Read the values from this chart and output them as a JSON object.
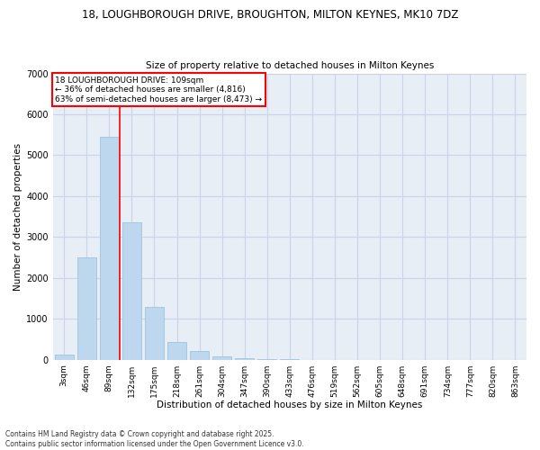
{
  "title1": "18, LOUGHBOROUGH DRIVE, BROUGHTON, MILTON KEYNES, MK10 7DZ",
  "title2": "Size of property relative to detached houses in Milton Keynes",
  "xlabel": "Distribution of detached houses by size in Milton Keynes",
  "ylabel": "Number of detached properties",
  "categories": [
    "3sqm",
    "46sqm",
    "89sqm",
    "132sqm",
    "175sqm",
    "218sqm",
    "261sqm",
    "304sqm",
    "347sqm",
    "390sqm",
    "433sqm",
    "476sqm",
    "519sqm",
    "562sqm",
    "605sqm",
    "648sqm",
    "691sqm",
    "734sqm",
    "777sqm",
    "820sqm",
    "863sqm"
  ],
  "values": [
    120,
    2500,
    5450,
    3350,
    1300,
    430,
    220,
    80,
    30,
    10,
    5,
    2,
    1,
    0,
    0,
    0,
    0,
    0,
    0,
    0,
    0
  ],
  "bar_color": "#bdd7ee",
  "bar_edge_color": "#9ec5e0",
  "vline_color": "red",
  "annotation_text": "18 LOUGHBOROUGH DRIVE: 109sqm\n← 36% of detached houses are smaller (4,816)\n63% of semi-detached houses are larger (8,473) →",
  "annotation_box_color": "white",
  "annotation_box_edge": "red",
  "ylim": [
    0,
    7000
  ],
  "yticks": [
    0,
    1000,
    2000,
    3000,
    4000,
    5000,
    6000,
    7000
  ],
  "background_color": "#e8eef6",
  "grid_color": "#c8d4e8",
  "footer1": "Contains HM Land Registry data © Crown copyright and database right 2025.",
  "footer2": "Contains public sector information licensed under the Open Government Licence v3.0."
}
